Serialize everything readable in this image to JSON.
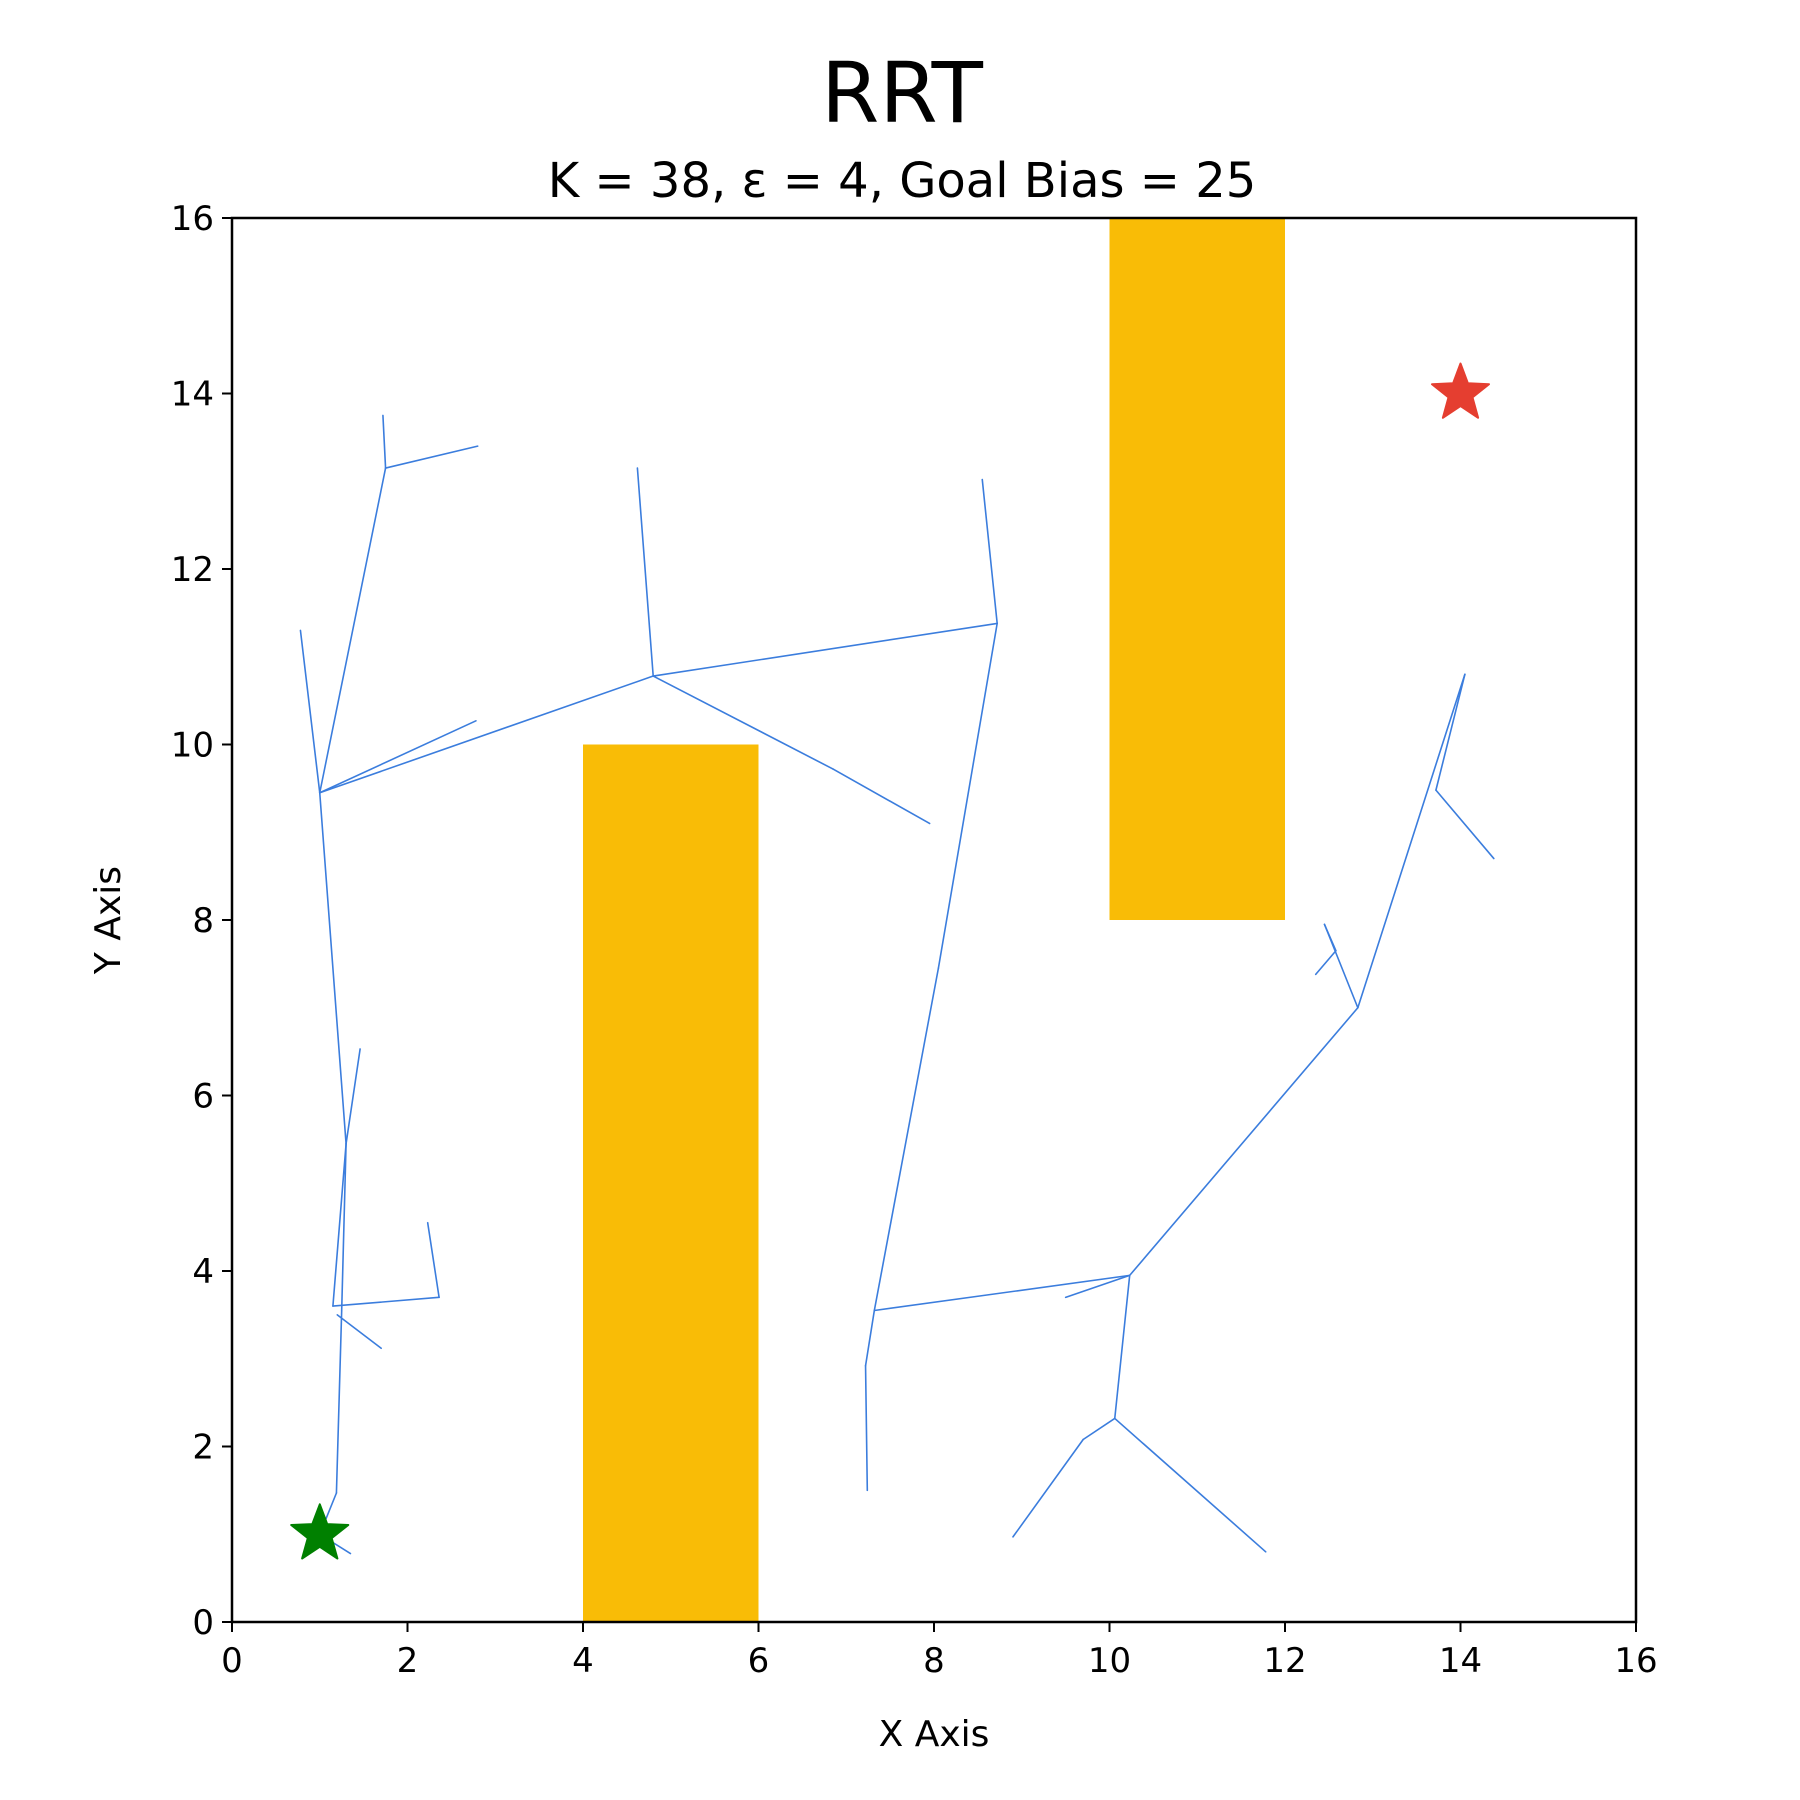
{
  "chart_data": {
    "type": "scatter",
    "title": "RRT",
    "subtitle": "K = 38, ε = 4, Goal Bias = 25",
    "xlabel": "X Axis",
    "ylabel": "Y Axis",
    "xlim": [
      0,
      16
    ],
    "ylim": [
      0,
      16
    ],
    "xticks": [
      "0",
      "2",
      "4",
      "6",
      "8",
      "10",
      "12",
      "14",
      "16"
    ],
    "yticks": [
      "0",
      "2",
      "4",
      "6",
      "8",
      "10",
      "12",
      "14",
      "16"
    ],
    "grid": false,
    "obstacles": [
      {
        "x": 4,
        "y": 0,
        "width": 2,
        "height": 10
      },
      {
        "x": 10,
        "y": 8,
        "width": 2,
        "height": 8
      }
    ],
    "start": {
      "x": 1.0,
      "y": 1.0
    },
    "goal": {
      "x": 14.0,
      "y": 14.0
    },
    "tree_edges": [
      [
        [
          1.0,
          1.0
        ],
        [
          1.35,
          0.78
        ]
      ],
      [
        [
          1.0,
          1.0
        ],
        [
          1.19,
          1.47
        ]
      ],
      [
        [
          1.19,
          1.47
        ],
        [
          1.25,
          3.55
        ]
      ],
      [
        [
          1.25,
          3.55
        ],
        [
          1.3,
          5.45
        ]
      ],
      [
        [
          1.3,
          5.45
        ],
        [
          1.46,
          6.53
        ]
      ],
      [
        [
          1.3,
          5.45
        ],
        [
          1.15,
          3.6
        ]
      ],
      [
        [
          1.15,
          3.6
        ],
        [
          2.36,
          3.7
        ]
      ],
      [
        [
          2.36,
          3.7
        ],
        [
          2.23,
          4.55
        ]
      ],
      [
        [
          1.2,
          3.5
        ],
        [
          1.7,
          3.12
        ]
      ],
      [
        [
          1.3,
          5.45
        ],
        [
          1.0,
          9.45
        ]
      ],
      [
        [
          1.0,
          9.45
        ],
        [
          0.78,
          11.3
        ]
      ],
      [
        [
          1.0,
          9.45
        ],
        [
          2.78,
          10.27
        ]
      ],
      [
        [
          1.0,
          9.45
        ],
        [
          1.75,
          13.15
        ]
      ],
      [
        [
          1.75,
          13.15
        ],
        [
          1.72,
          13.75
        ]
      ],
      [
        [
          1.75,
          13.15
        ],
        [
          2.8,
          13.4
        ]
      ],
      [
        [
          1.0,
          9.45
        ],
        [
          4.8,
          10.78
        ]
      ],
      [
        [
          4.8,
          10.78
        ],
        [
          4.62,
          13.15
        ]
      ],
      [
        [
          4.8,
          10.78
        ],
        [
          6.85,
          9.72
        ]
      ],
      [
        [
          6.85,
          9.72
        ],
        [
          7.95,
          9.1
        ]
      ],
      [
        [
          4.8,
          10.78
        ],
        [
          8.72,
          11.38
        ]
      ],
      [
        [
          8.72,
          11.38
        ],
        [
          8.55,
          13.02
        ]
      ],
      [
        [
          8.72,
          11.38
        ],
        [
          8.05,
          7.45
        ]
      ],
      [
        [
          8.05,
          7.45
        ],
        [
          7.32,
          3.55
        ]
      ],
      [
        [
          7.32,
          3.55
        ],
        [
          7.22,
          2.92
        ]
      ],
      [
        [
          7.22,
          2.92
        ],
        [
          7.24,
          1.5
        ]
      ],
      [
        [
          7.32,
          3.55
        ],
        [
          10.23,
          3.95
        ]
      ],
      [
        [
          10.23,
          3.95
        ],
        [
          9.5,
          3.7
        ]
      ],
      [
        [
          10.23,
          3.95
        ],
        [
          10.06,
          2.32
        ]
      ],
      [
        [
          10.06,
          2.32
        ],
        [
          9.7,
          2.08
        ]
      ],
      [
        [
          9.7,
          2.08
        ],
        [
          8.9,
          0.97
        ]
      ],
      [
        [
          10.06,
          2.32
        ],
        [
          11.78,
          0.8
        ]
      ],
      [
        [
          10.23,
          3.95
        ],
        [
          12.83,
          7.0
        ]
      ],
      [
        [
          12.83,
          7.0
        ],
        [
          12.45,
          7.95
        ]
      ],
      [
        [
          12.45,
          7.95
        ],
        [
          12.58,
          7.65
        ]
      ],
      [
        [
          12.58,
          7.65
        ],
        [
          12.35,
          7.38
        ]
      ],
      [
        [
          12.83,
          7.0
        ],
        [
          14.05,
          10.8
        ]
      ],
      [
        [
          14.05,
          10.8
        ],
        [
          13.72,
          9.48
        ]
      ],
      [
        [
          13.72,
          9.48
        ],
        [
          14.38,
          8.7
        ]
      ]
    ],
    "colors": {
      "tree": "#3b7ddd",
      "obstacle": "#f9bc06",
      "start": "#008000",
      "goal": "#e53e30"
    }
  }
}
